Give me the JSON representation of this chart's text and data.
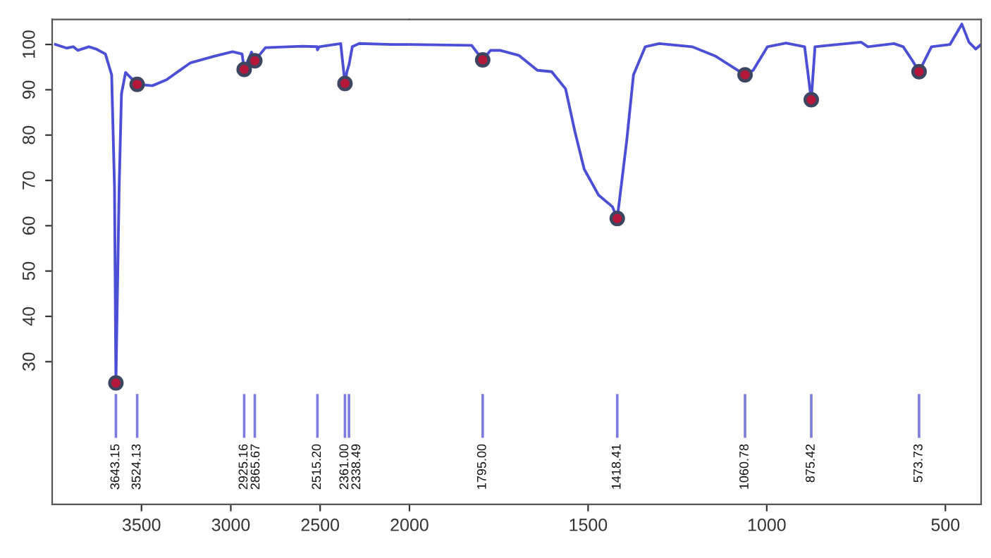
{
  "chart_data": [
    {
      "type": "line",
      "xlim": [
        4000,
        2000
      ],
      "xticks": [
        3500,
        3000,
        2500,
        2000
      ],
      "ylim": [
        -1.5,
        105.5
      ],
      "yticks": [
        30,
        40,
        50,
        60,
        70,
        80,
        90,
        100
      ],
      "grid": false,
      "legend": false,
      "series": [
        {
          "color": "#4a4fd6",
          "marker": "none",
          "x": [
            3982,
            3919,
            3882,
            3856,
            3794,
            3754,
            3702,
            3667,
            3651,
            3643.15,
            3625,
            3612,
            3589,
            3524.13,
            3439,
            3360,
            3228,
            3094,
            2990,
            2937,
            2925.16,
            2884,
            2865.67,
            2806,
            2600,
            2517,
            2515.2,
            2505,
            2385,
            2361,
            2350,
            2338.49,
            2320,
            2281,
            2100,
            2000
          ],
          "values": [
            100,
            99.2,
            99.5,
            98.7,
            99.5,
            99,
            97.9,
            93.3,
            68.4,
            25.3,
            68.4,
            89.1,
            93.8,
            91.2,
            90.9,
            92.2,
            95.9,
            97.4,
            98.4,
            97.9,
            94.5,
            98.3,
            96.4,
            99.3,
            99.6,
            99.5,
            98.8,
            99.5,
            100.2,
            91.4,
            94,
            95.5,
            99.5,
            100.2,
            100,
            100
          ]
        },
        {
          "type": "scatter",
          "color": "#b5173a",
          "marker": "circle",
          "x": [
            3643.15,
            3524.13,
            2925.16,
            2865.67,
            2361.0
          ],
          "values": [
            25.3,
            91.2,
            94.5,
            96.4,
            91.4
          ]
        }
      ],
      "ref_lines": [
        {
          "axis": "x",
          "value": 3643.15,
          "label": "3643.15",
          "color": "#7b7be0"
        },
        {
          "axis": "x",
          "value": 3524.13,
          "label": "3524.13",
          "color": "#7b7be0"
        },
        {
          "axis": "x",
          "value": 2925.16,
          "label": "2925.16",
          "color": "#7b7be0"
        },
        {
          "axis": "x",
          "value": 2865.67,
          "label": "2865.67",
          "color": "#7b7be0"
        },
        {
          "axis": "x",
          "value": 2515.2,
          "label": "2515.20",
          "color": "#7b7be0"
        },
        {
          "axis": "x",
          "value": 2361,
          "label": "2361.00",
          "color": "#7b7be0"
        },
        {
          "axis": "x",
          "value": 2338.49,
          "label": "2338.49",
          "color": "#7b7be0"
        }
      ]
    },
    {
      "type": "line",
      "xlim": [
        2000,
        400
      ],
      "xticks": [
        1500,
        1000,
        500
      ],
      "ylim": [
        -1.5,
        105.5
      ],
      "tick_labels": "x",
      "grid": false,
      "legend": false,
      "series": [
        {
          "color": "#4a4fd6",
          "marker": "none",
          "x": [
            2000,
            1826,
            1795,
            1773,
            1747,
            1694,
            1642,
            1602,
            1563,
            1537,
            1511,
            1471,
            1432,
            1418.41,
            1392,
            1373,
            1340,
            1301,
            1209,
            1143,
            1091,
            1060.78,
            1038,
            998,
            946,
            894,
            875.42,
            865,
            802,
            736,
            717,
            644,
            618,
            592,
            573.73,
            539,
            487,
            454,
            434,
            415,
            400
          ],
          "values": [
            100,
            99.8,
            96.6,
            98.7,
            98.7,
            97.6,
            94.3,
            94,
            90.2,
            80.8,
            72.5,
            66.8,
            64.2,
            61.6,
            78.7,
            93.3,
            99.5,
            100.2,
            99.5,
            97.4,
            94.8,
            93.3,
            94.3,
            99.5,
            100.3,
            99.5,
            87.8,
            99.5,
            100,
            100.5,
            99.5,
            100.2,
            99.5,
            96.4,
            94,
            99.5,
            100,
            104.5,
            100.5,
            99,
            100
          ]
        },
        {
          "type": "scatter",
          "color": "#b5173a",
          "marker": "circle",
          "x": [
            1795.0,
            1418.41,
            1060.78,
            875.42,
            573.73
          ],
          "values": [
            96.6,
            61.6,
            93.3,
            87.8,
            94.0
          ]
        }
      ],
      "ref_lines": [
        {
          "axis": "x",
          "value": 1795,
          "label": "1795.00",
          "color": "#7b7be0"
        },
        {
          "axis": "x",
          "value": 1418.41,
          "label": "1418.41",
          "color": "#7b7be0"
        },
        {
          "axis": "x",
          "value": 1060.78,
          "label": "1060.78",
          "color": "#7b7be0"
        },
        {
          "axis": "x",
          "value": 875.42,
          "label": "875.42",
          "color": "#7b7be0"
        },
        {
          "axis": "x",
          "value": 573.73,
          "label": "573.73",
          "color": "#7b7be0"
        }
      ]
    }
  ]
}
